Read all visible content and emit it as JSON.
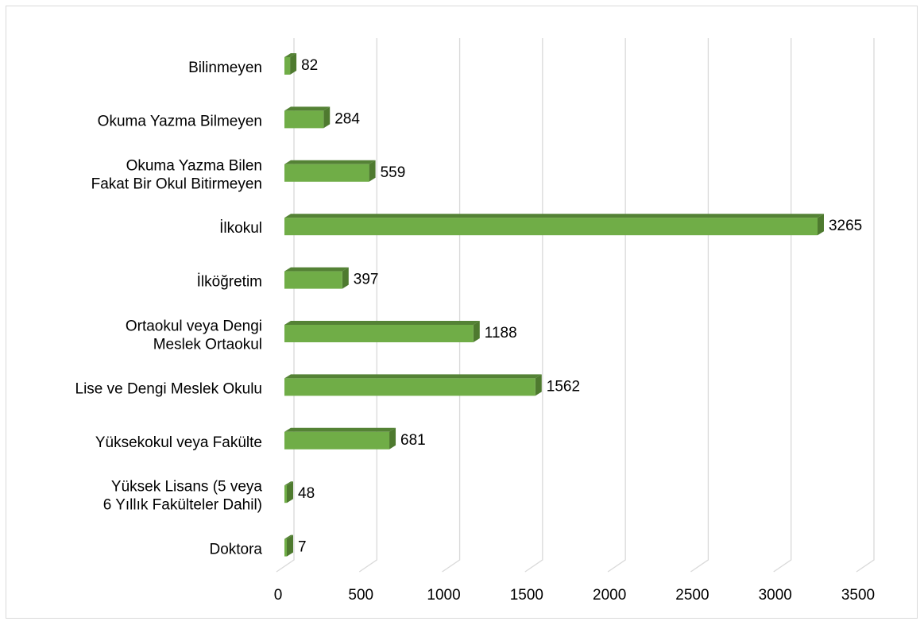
{
  "colors": {
    "bar_front": "#70ad47",
    "bar_top": "#548235",
    "bar_side": "#4e7a2f",
    "grid": "#d9d9d9",
    "border": "#d9d9d9"
  },
  "chart_data": {
    "type": "bar",
    "orientation": "horizontal",
    "style": "3d",
    "title": "",
    "xlabel": "",
    "ylabel": "",
    "xlim": [
      0,
      3500
    ],
    "grid": true,
    "categories": [
      [
        "Bilinmeyen"
      ],
      [
        "Okuma Yazma Bilmeyen"
      ],
      [
        "Okuma Yazma Bilen",
        "Fakat Bir Okul Bitirmeyen"
      ],
      [
        "İlkokul"
      ],
      [
        "İlköğretim"
      ],
      [
        "Ortaokul veya Dengi",
        "Meslek Ortaokul"
      ],
      [
        "Lise ve Dengi Meslek Okulu"
      ],
      [
        "Yüksekokul veya Fakülte"
      ],
      [
        "Yüksek Lisans (5 veya",
        "6  Yıllık Fakülteler Dahil)"
      ],
      [
        "Doktora"
      ]
    ],
    "values": [
      82,
      284,
      559,
      3265,
      397,
      1188,
      1562,
      681,
      48,
      7
    ],
    "value_labels": [
      "82",
      "284",
      "559",
      "3265",
      "397",
      "1188",
      "1562",
      "681",
      "48",
      "7"
    ],
    "ticks": [
      0,
      500,
      1000,
      1500,
      2000,
      2500,
      3000,
      3500
    ],
    "tick_labels": [
      "0",
      "500",
      "1000",
      "1500",
      "2000",
      "2500",
      "3000",
      "3500"
    ]
  }
}
